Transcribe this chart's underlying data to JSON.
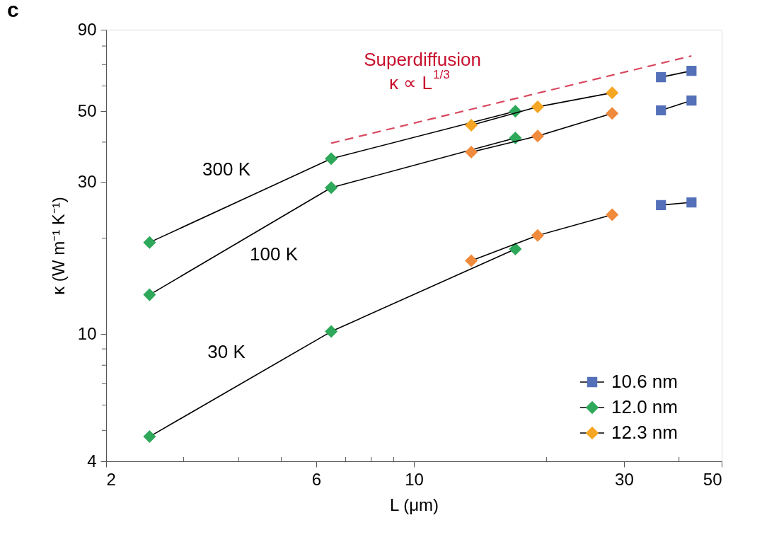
{
  "chart_data": {
    "type": "line",
    "xlabel": "L (μm)",
    "ylabel": "κ (W m⁻¹ K⁻¹)",
    "log": "xy",
    "xlim": [
      2,
      50
    ],
    "xticks": [
      2,
      {
        "value": 3,
        "label": null
      },
      {
        "value": 4,
        "label": null
      },
      {
        "value": 5,
        "label": null
      },
      6,
      {
        "value": 7,
        "label": null
      },
      {
        "value": 8,
        "label": null
      },
      {
        "value": 9,
        "label": null
      },
      10,
      {
        "value": 20,
        "label": null
      },
      30,
      {
        "value": 40,
        "label": null
      },
      50
    ],
    "ylim": [
      4,
      90
    ],
    "yticks": [
      4,
      {
        "value": 5,
        "label": null
      },
      {
        "value": 6,
        "label": null
      },
      {
        "value": 7,
        "label": null
      },
      {
        "value": 8,
        "label": null
      },
      {
        "value": 9,
        "label": null
      },
      10,
      {
        "value": 20,
        "label": null
      },
      30,
      {
        "value": 40,
        "label": null
      },
      50,
      {
        "value": 60,
        "label": null
      },
      {
        "value": 70,
        "label": null
      },
      {
        "value": 80,
        "label": null
      },
      90
    ],
    "grid": false,
    "legend": "bottom right",
    "series": [
      {
        "name": "10.6 nm",
        "color": "#5470b8",
        "marker": "square",
        "x": [
          36.4,
          42.7
        ],
        "values": [
          63.9,
          66.9
        ]
      },
      {
        "name": "12.0 nm",
        "color": "#2ea85a",
        "marker": "diamond",
        "x": [
          2.51,
          6.49,
          17.0
        ],
        "values": [
          19.4,
          35.5,
          50.0
        ]
      },
      {
        "name": "12.3 nm",
        "color": "#f5a623",
        "marker": "diamond",
        "x": [
          13.5,
          19.1,
          28.2
        ],
        "values": [
          45.2,
          51.6,
          57.1
        ]
      },
      {
        "color": "#5470b8",
        "marker": "square",
        "x": [
          36.4,
          42.7
        ],
        "values": [
          50.3,
          54.0
        ]
      },
      {
        "color": "#2ea85a",
        "marker": "diamond",
        "x": [
          2.51,
          6.49,
          17.0
        ],
        "values": [
          13.3,
          28.8,
          41.2
        ]
      },
      {
        "color": "#f08a3c",
        "marker": "diamond",
        "x": [
          13.5,
          19.1,
          28.2
        ],
        "values": [
          37.2,
          41.8,
          49.2
        ]
      },
      {
        "color": "#5470b8",
        "marker": "square",
        "x": [
          36.4,
          42.7
        ],
        "values": [
          25.4,
          25.9
        ]
      },
      {
        "color": "#2ea85a",
        "marker": "diamond",
        "x": [
          2.51,
          6.49,
          17.0
        ],
        "values": [
          4.78,
          10.2,
          18.5
        ]
      },
      {
        "color": "#f08a3c",
        "marker": "diamond",
        "x": [
          13.5,
          19.1,
          28.2
        ],
        "values": [
          17.0,
          20.4,
          23.7
        ]
      },
      {
        "type": "line",
        "color": "#d9485f",
        "line_style": "dashed",
        "marker": "none",
        "x": [
          6.49,
          42.7
        ],
        "values": [
          39.7,
          74.5
        ]
      }
    ],
    "annotations": [
      "c",
      "300 K",
      "100 K",
      "30 K",
      "Superdiffusion",
      "κ ∝ L$^{1/3}$"
    ]
  }
}
